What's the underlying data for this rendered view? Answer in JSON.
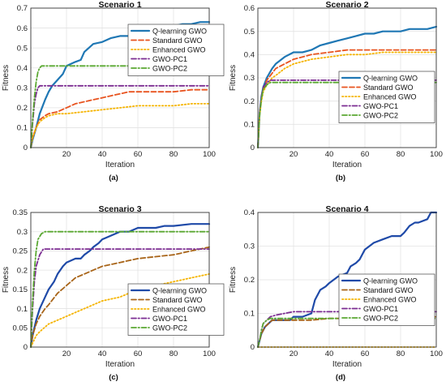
{
  "chart_data": [
    {
      "type": "line",
      "panel_label": "(a)",
      "title": "Scenario 1",
      "xlabel": "Iteration",
      "ylabel": "Fitness",
      "xlim": [
        0,
        100
      ],
      "ylim": [
        0,
        0.7
      ],
      "xticks": [
        "20",
        "40",
        "60",
        "80",
        "100"
      ],
      "yticks": [
        "0",
        "0.1",
        "0.2",
        "0.3",
        "0.4",
        "0.5",
        "0.6",
        "0.7"
      ],
      "grid": true,
      "legend_position": "right",
      "series": [
        {
          "name": "Q-learning GWO",
          "color": "#1f77b4",
          "dash": "solid",
          "x": [
            0,
            1,
            3,
            5,
            8,
            10,
            12,
            15,
            18,
            20,
            25,
            28,
            30,
            35,
            40,
            45,
            50,
            55,
            60,
            65,
            70,
            75,
            80,
            85,
            90,
            95,
            100
          ],
          "y": [
            0,
            0.04,
            0.1,
            0.17,
            0.24,
            0.28,
            0.31,
            0.34,
            0.37,
            0.41,
            0.43,
            0.44,
            0.48,
            0.52,
            0.53,
            0.55,
            0.56,
            0.56,
            0.58,
            0.6,
            0.6,
            0.61,
            0.61,
            0.62,
            0.62,
            0.63,
            0.63
          ]
        },
        {
          "name": "Standard GWO",
          "color": "#e8531f",
          "dash": "dash",
          "x": [
            0,
            1,
            3,
            5,
            8,
            10,
            15,
            20,
            25,
            30,
            35,
            40,
            45,
            50,
            55,
            60,
            70,
            80,
            90,
            100
          ],
          "y": [
            0,
            0.05,
            0.1,
            0.14,
            0.16,
            0.17,
            0.18,
            0.2,
            0.22,
            0.23,
            0.24,
            0.25,
            0.26,
            0.27,
            0.28,
            0.28,
            0.28,
            0.28,
            0.29,
            0.29
          ]
        },
        {
          "name": "Enhanced GWO",
          "color": "#f5b400",
          "dash": "dot",
          "x": [
            0,
            1,
            3,
            5,
            8,
            10,
            15,
            20,
            30,
            40,
            50,
            60,
            70,
            80,
            90,
            100
          ],
          "y": [
            0,
            0.05,
            0.1,
            0.13,
            0.15,
            0.16,
            0.17,
            0.17,
            0.18,
            0.19,
            0.2,
            0.21,
            0.21,
            0.21,
            0.22,
            0.22
          ]
        },
        {
          "name": "GWO-PC1",
          "color": "#7b2c91",
          "dash": "dashdot",
          "x": [
            0,
            1,
            2,
            3,
            4,
            5,
            100
          ],
          "y": [
            0,
            0.12,
            0.22,
            0.27,
            0.3,
            0.31,
            0.31
          ]
        },
        {
          "name": "GWO-PC2",
          "color": "#5aa832",
          "dash": "dashdot",
          "x": [
            0,
            1,
            2,
            3,
            4,
            5,
            6,
            100
          ],
          "y": [
            0,
            0.14,
            0.25,
            0.33,
            0.38,
            0.4,
            0.41,
            0.41
          ]
        }
      ]
    },
    {
      "type": "line",
      "panel_label": "(b)",
      "title": "Scenario 2",
      "xlabel": "Iteration",
      "ylabel": "Fitness",
      "xlim": [
        0,
        100
      ],
      "ylim": [
        0,
        0.6
      ],
      "xticks": [
        "20",
        "40",
        "60",
        "80",
        "100"
      ],
      "yticks": [
        "0",
        "0.1",
        "0.2",
        "0.3",
        "0.4",
        "0.5",
        "0.6"
      ],
      "grid": true,
      "legend_position": "bottom-right",
      "series": [
        {
          "name": "Q-learning GWO",
          "color": "#1f77b4",
          "dash": "solid",
          "x": [
            0,
            1,
            2,
            3,
            5,
            8,
            10,
            15,
            20,
            25,
            30,
            35,
            40,
            45,
            50,
            55,
            60,
            65,
            70,
            75,
            80,
            85,
            90,
            95,
            100
          ],
          "y": [
            0,
            0.15,
            0.22,
            0.26,
            0.3,
            0.34,
            0.36,
            0.39,
            0.41,
            0.41,
            0.42,
            0.44,
            0.45,
            0.46,
            0.47,
            0.48,
            0.49,
            0.49,
            0.5,
            0.5,
            0.5,
            0.51,
            0.51,
            0.51,
            0.52
          ]
        },
        {
          "name": "Standard GWO",
          "color": "#e8531f",
          "dash": "dash",
          "x": [
            0,
            1,
            2,
            3,
            5,
            8,
            10,
            15,
            20,
            25,
            30,
            40,
            50,
            60,
            70,
            80,
            90,
            100
          ],
          "y": [
            0,
            0.15,
            0.21,
            0.25,
            0.29,
            0.32,
            0.34,
            0.36,
            0.38,
            0.39,
            0.4,
            0.41,
            0.42,
            0.42,
            0.42,
            0.42,
            0.42,
            0.42
          ]
        },
        {
          "name": "Enhanced GWO",
          "color": "#f5b400",
          "dash": "dot",
          "x": [
            0,
            1,
            2,
            3,
            5,
            8,
            10,
            15,
            20,
            25,
            30,
            40,
            50,
            60,
            70,
            80,
            90,
            100
          ],
          "y": [
            0,
            0.14,
            0.2,
            0.24,
            0.27,
            0.3,
            0.31,
            0.34,
            0.36,
            0.37,
            0.38,
            0.39,
            0.4,
            0.4,
            0.41,
            0.41,
            0.41,
            0.41
          ]
        },
        {
          "name": "GWO-PC1",
          "color": "#7b2c91",
          "dash": "dashdot",
          "x": [
            0,
            1,
            2,
            3,
            5,
            7,
            10,
            100
          ],
          "y": [
            0,
            0.15,
            0.22,
            0.26,
            0.28,
            0.29,
            0.29,
            0.29
          ]
        },
        {
          "name": "GWO-PC2",
          "color": "#5aa832",
          "dash": "dashdot",
          "x": [
            0,
            1,
            2,
            3,
            5,
            7,
            10,
            100
          ],
          "y": [
            0,
            0.14,
            0.21,
            0.25,
            0.27,
            0.28,
            0.28,
            0.28
          ]
        }
      ]
    },
    {
      "type": "line",
      "panel_label": "(c)",
      "title": "Scenario 3",
      "xlabel": "Iteration",
      "ylabel": "Fitness",
      "xlim": [
        0,
        100
      ],
      "ylim": [
        0,
        0.35
      ],
      "xticks": [
        "20",
        "40",
        "60",
        "80",
        "100"
      ],
      "yticks": [
        "0",
        "0.05",
        "0.1",
        "0.15",
        "0.2",
        "0.25",
        "0.3",
        "0.35"
      ],
      "grid": true,
      "legend_position": "bottom-right",
      "series": [
        {
          "name": "Q-learning GWO",
          "color": "#1f4aa8",
          "dash": "solid",
          "x": [
            0,
            1,
            3,
            5,
            8,
            10,
            13,
            15,
            18,
            20,
            25,
            28,
            30,
            33,
            35,
            38,
            40,
            45,
            50,
            55,
            60,
            70,
            75,
            80,
            90,
            100
          ],
          "y": [
            0,
            0.03,
            0.07,
            0.1,
            0.13,
            0.15,
            0.17,
            0.19,
            0.21,
            0.22,
            0.23,
            0.23,
            0.24,
            0.25,
            0.26,
            0.27,
            0.28,
            0.29,
            0.3,
            0.3,
            0.31,
            0.31,
            0.315,
            0.315,
            0.32,
            0.32
          ]
        },
        {
          "name": "Standard GWO",
          "color": "#a86418",
          "dash": "dash",
          "x": [
            0,
            1,
            3,
            5,
            8,
            10,
            15,
            20,
            25,
            30,
            35,
            40,
            50,
            60,
            70,
            80,
            90,
            100
          ],
          "y": [
            0,
            0.03,
            0.06,
            0.08,
            0.1,
            0.11,
            0.14,
            0.16,
            0.18,
            0.19,
            0.2,
            0.21,
            0.22,
            0.23,
            0.235,
            0.24,
            0.25,
            0.26
          ]
        },
        {
          "name": "Enhanced GWO",
          "color": "#f5b400",
          "dash": "dot",
          "x": [
            0,
            1,
            3,
            5,
            10,
            15,
            20,
            25,
            30,
            40,
            50,
            60,
            70,
            80,
            90,
            100
          ],
          "y": [
            0,
            0.01,
            0.03,
            0.04,
            0.06,
            0.07,
            0.08,
            0.09,
            0.1,
            0.12,
            0.13,
            0.15,
            0.16,
            0.17,
            0.18,
            0.19
          ]
        },
        {
          "name": "GWO-PC1",
          "color": "#7b2c91",
          "dash": "dashdot",
          "x": [
            0,
            1,
            2,
            3,
            5,
            7,
            100
          ],
          "y": [
            0,
            0.1,
            0.17,
            0.21,
            0.24,
            0.255,
            0.255
          ]
        },
        {
          "name": "GWO-PC2",
          "color": "#5aa832",
          "dash": "dashdot",
          "x": [
            0,
            1,
            2,
            3,
            4,
            6,
            8,
            100
          ],
          "y": [
            0,
            0.12,
            0.2,
            0.25,
            0.28,
            0.295,
            0.3,
            0.3
          ]
        }
      ]
    },
    {
      "type": "line",
      "panel_label": "(d)",
      "title": "Scenario 4",
      "xlabel": "Iteration",
      "ylabel": "Fitness",
      "xlim": [
        0,
        100
      ],
      "ylim": [
        0,
        0.4
      ],
      "xticks": [
        "20",
        "40",
        "60",
        "80",
        "100"
      ],
      "yticks": [
        "0",
        "0.1",
        "0.2",
        "0.3",
        "0.4"
      ],
      "grid": true,
      "legend_position": "right",
      "series": [
        {
          "name": "Q-learning GWO",
          "color": "#1f4aa8",
          "dash": "solid",
          "x": [
            0,
            1,
            2,
            4,
            6,
            8,
            10,
            15,
            18,
            20,
            25,
            30,
            32,
            35,
            38,
            40,
            45,
            50,
            52,
            55,
            57,
            60,
            65,
            70,
            75,
            80,
            82,
            85,
            88,
            90,
            95,
            97,
            100
          ],
          "y": [
            0,
            0.02,
            0.04,
            0.06,
            0.07,
            0.08,
            0.08,
            0.08,
            0.08,
            0.09,
            0.09,
            0.1,
            0.14,
            0.17,
            0.18,
            0.19,
            0.21,
            0.22,
            0.24,
            0.25,
            0.26,
            0.29,
            0.31,
            0.32,
            0.33,
            0.33,
            0.34,
            0.36,
            0.37,
            0.37,
            0.38,
            0.4,
            0.4
          ]
        },
        {
          "name": "Standard GWO",
          "color": "#a86418",
          "dash": "dash",
          "x": [
            0,
            1,
            2,
            4,
            6,
            8,
            10,
            20,
            30,
            40,
            50,
            60,
            70,
            80,
            90,
            100
          ],
          "y": [
            0,
            0.02,
            0.04,
            0.06,
            0.07,
            0.08,
            0.08,
            0.08,
            0.08,
            0.085,
            0.085,
            0.09,
            0.09,
            0.09,
            0.09,
            0.09
          ]
        },
        {
          "name": "Enhanced GWO",
          "color": "#f5b400",
          "dash": "dot",
          "x": [
            0,
            100
          ],
          "y": [
            0,
            0
          ]
        },
        {
          "name": "GWO-PC1",
          "color": "#7b2c91",
          "dash": "dashdot",
          "x": [
            0,
            1,
            2,
            3,
            5,
            7,
            10,
            15,
            20,
            100
          ],
          "y": [
            0,
            0.02,
            0.05,
            0.07,
            0.08,
            0.09,
            0.095,
            0.1,
            0.105,
            0.105
          ]
        },
        {
          "name": "GWO-PC2",
          "color": "#5aa832",
          "dash": "dashdot",
          "x": [
            0,
            1,
            2,
            3,
            5,
            7,
            10,
            100
          ],
          "y": [
            0,
            0.02,
            0.05,
            0.07,
            0.08,
            0.085,
            0.085,
            0.085
          ]
        }
      ]
    }
  ]
}
